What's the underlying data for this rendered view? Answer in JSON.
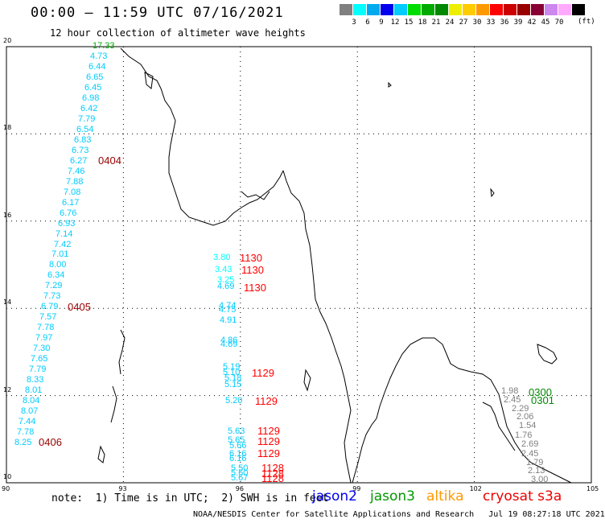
{
  "header": {
    "title": "00:00 — 11:59 UTC 07/16/2021",
    "subtitle": "12 hour collection of altimeter wave heights"
  },
  "colorbar": {
    "unit": "(ft)",
    "ticks": [
      "3",
      "6",
      "9",
      "12",
      "15",
      "18",
      "21",
      "24",
      "27",
      "30",
      "33",
      "36",
      "39",
      "42",
      "45",
      "70"
    ],
    "colors": [
      "#808080",
      "#00ffff",
      "#00aaee",
      "#0000ee",
      "#00ccff",
      "#00dd00",
      "#00aa00",
      "#008800",
      "#eeee00",
      "#ffcc00",
      "#ff9900",
      "#ff0000",
      "#cc0000",
      "#990000",
      "#880033",
      "#cc88ee",
      "#ffaaff",
      "#000000"
    ]
  },
  "axes": {
    "x_ticks": [
      "90",
      "93",
      "96",
      "99",
      "102",
      "105"
    ],
    "y_ticks": [
      "20",
      "18",
      "16",
      "14",
      "12",
      "10"
    ],
    "lon_range": [
      90,
      105
    ],
    "lat_range": [
      10,
      20
    ]
  },
  "points": {
    "track1": [
      {
        "v": "17.33",
        "c": "#00aa00"
      },
      {
        "v": "4.73",
        "c": "#00ccff"
      },
      {
        "v": "6.44",
        "c": "#00ccff"
      },
      {
        "v": "6.65",
        "c": "#00ccff"
      },
      {
        "v": "6.45",
        "c": "#00ccff"
      },
      {
        "v": "6.98",
        "c": "#00ccff"
      },
      {
        "v": "6.42",
        "c": "#00ccff"
      },
      {
        "v": "7.79",
        "c": "#00ccff"
      },
      {
        "v": "6.54",
        "c": "#00ccff"
      },
      {
        "v": "6.83",
        "c": "#00ccff"
      },
      {
        "v": "6.73",
        "c": "#00ccff"
      },
      {
        "v": "6.27",
        "c": "#00ccff"
      },
      {
        "v": "7.46",
        "c": "#00ccff"
      },
      {
        "v": "7.88",
        "c": "#00ccff"
      },
      {
        "v": "7.08",
        "c": "#00ccff"
      },
      {
        "v": "6.17",
        "c": "#00ccff"
      },
      {
        "v": "6.76",
        "c": "#00ccff"
      },
      {
        "v": "6.93",
        "c": "#00ccff"
      },
      {
        "v": "7.14",
        "c": "#00ccff"
      },
      {
        "v": "7.42",
        "c": "#00ccff"
      },
      {
        "v": "7.01",
        "c": "#00ccff"
      },
      {
        "v": "8.00",
        "c": "#00ccff"
      },
      {
        "v": "6.34",
        "c": "#00ccff"
      },
      {
        "v": "7.29",
        "c": "#00ccff"
      },
      {
        "v": "7.73",
        "c": "#00ccff"
      },
      {
        "v": "6.79",
        "c": "#00ccff"
      },
      {
        "v": "7.57",
        "c": "#00ccff"
      },
      {
        "v": "7.78",
        "c": "#00ccff"
      },
      {
        "v": "7.97",
        "c": "#00ccff"
      },
      {
        "v": "7.30",
        "c": "#00ccff"
      },
      {
        "v": "7.65",
        "c": "#00ccff"
      },
      {
        "v": "7.79",
        "c": "#00ccff"
      },
      {
        "v": "8.33",
        "c": "#00ccff"
      },
      {
        "v": "8.01",
        "c": "#00ccff"
      },
      {
        "v": "8.04",
        "c": "#00ccff"
      },
      {
        "v": "8.07",
        "c": "#00ccff"
      },
      {
        "v": "7.44",
        "c": "#00ccff"
      },
      {
        "v": "7.78",
        "c": "#00ccff"
      },
      {
        "v": "8.25",
        "c": "#00ccff"
      }
    ],
    "track2": [
      {
        "v": "3.80",
        "c": "#00ffff"
      },
      {
        "v": "3.43",
        "c": "#00ffff"
      },
      {
        "v": "3.25",
        "c": "#00ffff"
      },
      {
        "v": "4.69",
        "c": "#00ccff"
      },
      {
        "v": "4.74",
        "c": "#00ccff"
      },
      {
        "v": "4.75",
        "c": "#00ccff"
      },
      {
        "v": "4.91",
        "c": "#00ccff"
      },
      {
        "v": "4.86",
        "c": "#00ccff"
      },
      {
        "v": "4.69",
        "c": "#00ccff"
      },
      {
        "v": "5.19",
        "c": "#00ccff"
      },
      {
        "v": "5.10",
        "c": "#00ccff"
      },
      {
        "v": "5.18",
        "c": "#00ccff"
      },
      {
        "v": "5.15",
        "c": "#00ccff"
      },
      {
        "v": "5.20",
        "c": "#00ccff"
      },
      {
        "v": "5.63",
        "c": "#00ccff"
      },
      {
        "v": "5.65",
        "c": "#00ccff"
      },
      {
        "v": "5.66",
        "c": "#00ccff"
      },
      {
        "v": "6.16",
        "c": "#00ccff"
      },
      {
        "v": "6.16",
        "c": "#00ccff"
      },
      {
        "v": "5.50",
        "c": "#00ccff"
      },
      {
        "v": "5.60",
        "c": "#00ccff"
      },
      {
        "v": "5.67",
        "c": "#00ccff"
      }
    ],
    "track3": [
      {
        "v": "1.98",
        "c": "#808080"
      },
      {
        "v": "2.45",
        "c": "#808080"
      },
      {
        "v": "2.29",
        "c": "#808080"
      },
      {
        "v": "2.06",
        "c": "#808080"
      },
      {
        "v": "1.54",
        "c": "#808080"
      },
      {
        "v": "1.76",
        "c": "#808080"
      },
      {
        "v": "2.69",
        "c": "#808080"
      },
      {
        "v": "2.45",
        "c": "#808080"
      },
      {
        "v": "1.79",
        "c": "#808080"
      },
      {
        "v": "2.13",
        "c": "#808080"
      },
      {
        "v": "3.00",
        "c": "#808080"
      }
    ]
  },
  "times": [
    {
      "t": "0404",
      "c": "#990000"
    },
    {
      "t": "0405",
      "c": "#990000"
    },
    {
      "t": "0406",
      "c": "#990000"
    },
    {
      "t": "1130",
      "c": "#ff0000"
    },
    {
      "t": "1130",
      "c": "#ff0000"
    },
    {
      "t": "1130",
      "c": "#ff0000"
    },
    {
      "t": "1129",
      "c": "#ff0000"
    },
    {
      "t": "1129",
      "c": "#ff0000"
    },
    {
      "t": "1129",
      "c": "#ff0000"
    },
    {
      "t": "1129",
      "c": "#ff0000"
    },
    {
      "t": "1129",
      "c": "#ff0000"
    },
    {
      "t": "1128",
      "c": "#ff0000"
    },
    {
      "t": "1128",
      "c": "#ff0000"
    },
    {
      "t": "1128",
      "c": "#ff0000"
    },
    {
      "t": "0300",
      "c": "#008800"
    },
    {
      "t": "0301",
      "c": "#008800"
    }
  ],
  "note": "note:  1) Time is in UTC;  2) SWH is in feet",
  "legend": [
    {
      "name": "jason2",
      "color": "#0000ee"
    },
    {
      "name": "jason3",
      "color": "#009900"
    },
    {
      "name": "altika",
      "color": "#ff9900"
    },
    {
      "name": "cryosat s3a",
      "color": "#ee0000"
    }
  ],
  "footer": "NOAA/NESDIS Center for Satellite Applications and Research   Jul 19 08:27:18 UTC 2021"
}
